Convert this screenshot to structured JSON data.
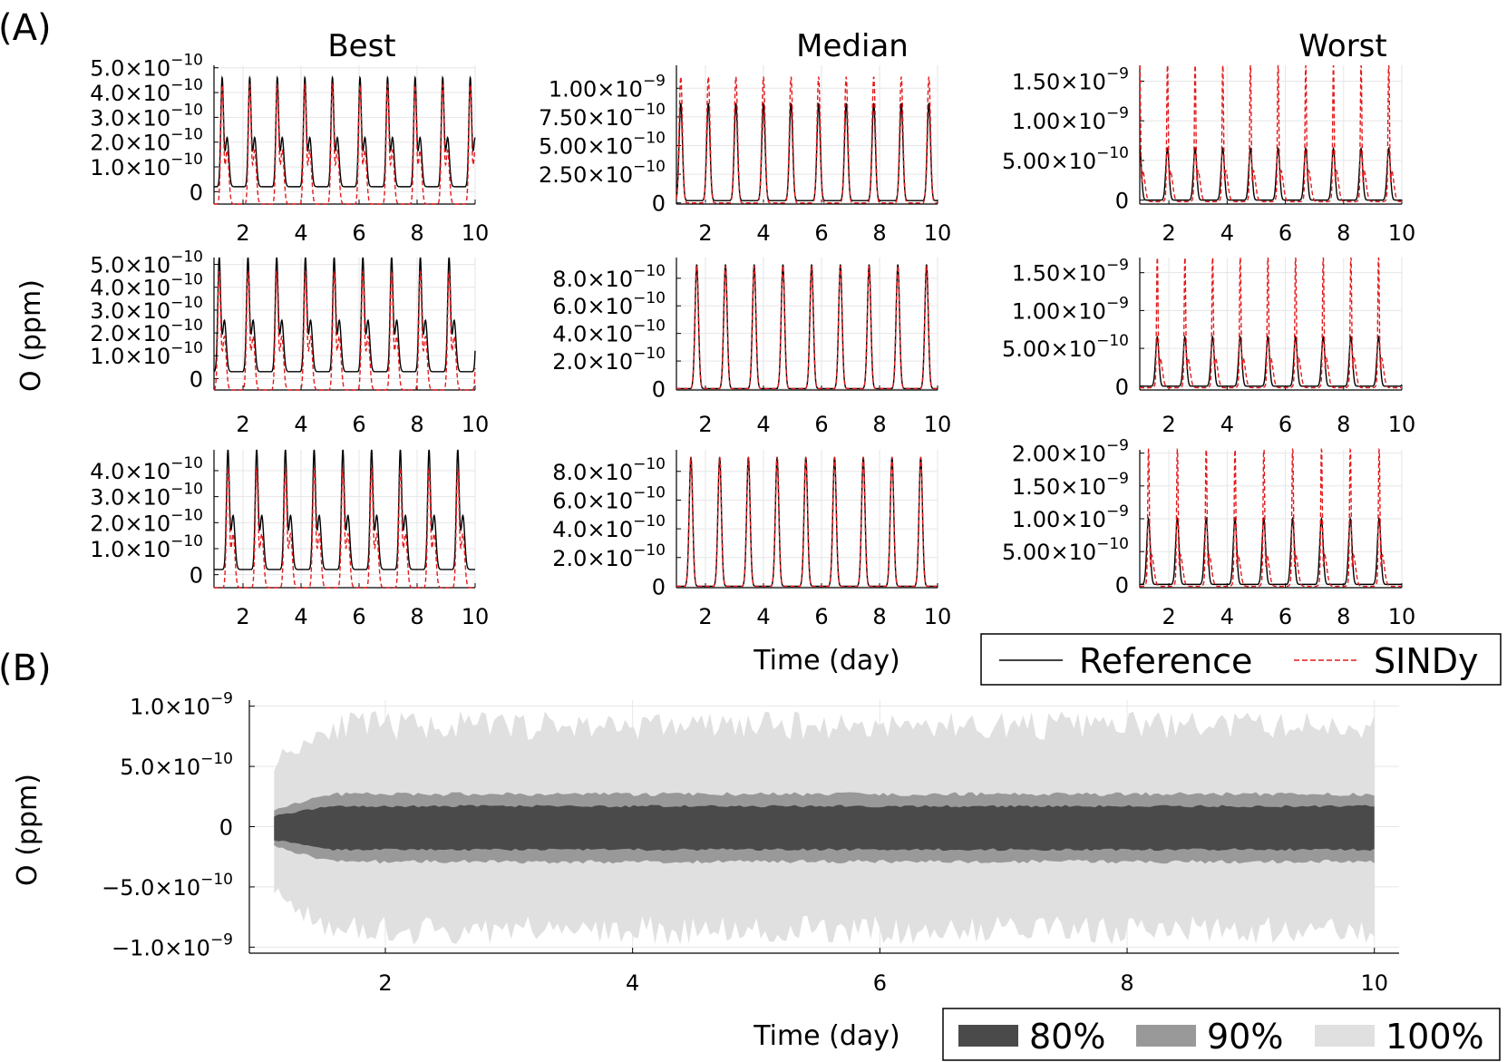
{
  "figure": {
    "panel_a_label": "(A)",
    "panel_b_label": "(B)",
    "column_titles": [
      "Best",
      "Median",
      "Worst"
    ],
    "shared_ylabel": "O (ppm)",
    "shared_xlabel": "Time (day)"
  },
  "legend_a": {
    "items": [
      {
        "label": "Reference",
        "style": "solid",
        "color": "#000000"
      },
      {
        "label": "SINDy",
        "style": "dashed",
        "color": "#e41a1c"
      }
    ]
  },
  "legend_b": {
    "items": [
      {
        "label": "80%",
        "color": "#4a4a4a"
      },
      {
        "label": "90%",
        "color": "#999999"
      },
      {
        "label": "100%",
        "color": "#e0e0e0"
      }
    ]
  },
  "colors": {
    "reference": "#000000",
    "sindy": "#e41a1c",
    "grid": "#e6e6e6"
  },
  "chart_data": [
    {
      "type": "line",
      "panel": "A",
      "column": "Best",
      "row": 1,
      "xlim": [
        1,
        10
      ],
      "ylim": [
        -5e-11,
        5.1e-10
      ],
      "xticks": [
        "2",
        "4",
        "6",
        "8",
        "10"
      ],
      "yticks": [
        {
          "v": 0,
          "m": "0",
          "e": ""
        },
        {
          "v": 1e-10,
          "m": "1.0×10",
          "e": "−10"
        },
        {
          "v": 2e-10,
          "m": "2.0×10",
          "e": "−10"
        },
        {
          "v": 3e-10,
          "m": "3.0×10",
          "e": "−10"
        },
        {
          "v": 4e-10,
          "m": "4.0×10",
          "e": "−10"
        },
        {
          "v": 5e-10,
          "m": "5.0×10",
          "e": "−10"
        }
      ],
      "period": 0.95,
      "phase": 1.3,
      "series": [
        {
          "name": "Reference",
          "amp": 4.4e-10,
          "base": 2e-11,
          "shape": "shoulder"
        },
        {
          "name": "SINDy",
          "amp": 4.8e-10,
          "base": -5e-11,
          "shape": "shoulder"
        }
      ]
    },
    {
      "type": "line",
      "panel": "A",
      "column": "Median",
      "row": 1,
      "xlim": [
        1,
        10
      ],
      "ylim": [
        -1e-11,
        1.2e-09
      ],
      "xticks": [
        "2",
        "4",
        "6",
        "8",
        "10"
      ],
      "yticks": [
        {
          "v": 0,
          "m": "0",
          "e": ""
        },
        {
          "v": 2.5e-10,
          "m": "2.50×10",
          "e": "−10"
        },
        {
          "v": 5e-10,
          "m": "5.00×10",
          "e": "−10"
        },
        {
          "v": 7.5e-10,
          "m": "7.50×10",
          "e": "−10"
        },
        {
          "v": 1e-09,
          "m": "1.00×10",
          "e": "−9"
        }
      ],
      "period": 0.95,
      "phase": 1.15,
      "series": [
        {
          "name": "Reference",
          "amp": 8.5e-10,
          "base": 2e-11,
          "shape": "peak"
        },
        {
          "name": "SINDy",
          "amp": 1.1e-09,
          "base": 0.0,
          "shape": "peak"
        }
      ]
    },
    {
      "type": "line",
      "panel": "A",
      "column": "Worst",
      "row": 1,
      "xlim": [
        1,
        10
      ],
      "ylim": [
        -5e-11,
        1.7e-09
      ],
      "xticks": [
        "2",
        "4",
        "6",
        "8",
        "10"
      ],
      "yticks": [
        {
          "v": 0,
          "m": "0",
          "e": ""
        },
        {
          "v": 5e-10,
          "m": "5.00×10",
          "e": "−10"
        },
        {
          "v": 1e-09,
          "m": "1.00×10",
          "e": "−9"
        },
        {
          "v": 1.5e-09,
          "m": "1.50×10",
          "e": "−9"
        }
      ],
      "period": 0.95,
      "phase": 1.0,
      "series": [
        {
          "name": "Reference",
          "amp": 6.5e-10,
          "base": 0.0,
          "shape": "peak"
        },
        {
          "name": "SINDy",
          "amp": 1.6e-09,
          "base": -2e-11,
          "shape": "spike"
        }
      ]
    },
    {
      "type": "line",
      "panel": "A",
      "column": "Best",
      "row": 2,
      "xlim": [
        1,
        10
      ],
      "ylim": [
        -5e-11,
        5.3e-10
      ],
      "xticks": [
        "2",
        "4",
        "6",
        "8",
        "10"
      ],
      "yticks": [
        {
          "v": 0,
          "m": "0",
          "e": ""
        },
        {
          "v": 1e-10,
          "m": "1.0×10",
          "e": "−10"
        },
        {
          "v": 2e-10,
          "m": "2.0×10",
          "e": "−10"
        },
        {
          "v": 3e-10,
          "m": "3.0×10",
          "e": "−10"
        },
        {
          "v": 4e-10,
          "m": "4.0×10",
          "e": "−10"
        },
        {
          "v": 5e-10,
          "m": "5.0×10",
          "e": "−10"
        }
      ],
      "period": 0.99,
      "phase": 1.2,
      "series": [
        {
          "name": "Reference",
          "amp": 5e-10,
          "base": 3e-11,
          "shape": "shoulder"
        },
        {
          "name": "SINDy",
          "amp": 5.2e-10,
          "base": -5e-11,
          "shape": "shoulder"
        }
      ]
    },
    {
      "type": "line",
      "panel": "A",
      "column": "Median",
      "row": 2,
      "xlim": [
        1,
        10
      ],
      "ylim": [
        -1e-11,
        9.5e-10
      ],
      "xticks": [
        "2",
        "4",
        "6",
        "8",
        "10"
      ],
      "yticks": [
        {
          "v": 0,
          "m": "0",
          "e": ""
        },
        {
          "v": 2e-10,
          "m": "2.0×10",
          "e": "−10"
        },
        {
          "v": 4e-10,
          "m": "4.0×10",
          "e": "−10"
        },
        {
          "v": 6e-10,
          "m": "6.0×10",
          "e": "−10"
        },
        {
          "v": 8e-10,
          "m": "8.0×10",
          "e": "−10"
        }
      ],
      "period": 0.99,
      "phase": 1.7,
      "series": [
        {
          "name": "Reference",
          "amp": 9e-10,
          "base": 0.0,
          "shape": "peak"
        },
        {
          "name": "SINDy",
          "amp": 8.9e-10,
          "base": 0.0,
          "shape": "peak"
        }
      ]
    },
    {
      "type": "line",
      "panel": "A",
      "column": "Worst",
      "row": 2,
      "xlim": [
        1,
        10
      ],
      "ylim": [
        -5e-11,
        1.7e-09
      ],
      "xticks": [
        "2",
        "4",
        "6",
        "8",
        "10"
      ],
      "yticks": [
        {
          "v": 0,
          "m": "0",
          "e": ""
        },
        {
          "v": 5e-10,
          "m": "5.00×10",
          "e": "−10"
        },
        {
          "v": 1e-09,
          "m": "1.00×10",
          "e": "−9"
        },
        {
          "v": 1.5e-09,
          "m": "1.50×10",
          "e": "−9"
        }
      ],
      "period": 0.95,
      "phase": 1.6,
      "series": [
        {
          "name": "Reference",
          "amp": 6.5e-10,
          "base": 0.0,
          "shape": "peak"
        },
        {
          "name": "SINDy",
          "amp": 1.6e-09,
          "base": -2e-11,
          "shape": "spike"
        }
      ]
    },
    {
      "type": "line",
      "panel": "A",
      "column": "Best",
      "row": 3,
      "xlim": [
        1,
        10
      ],
      "ylim": [
        -5e-11,
        4.8e-10
      ],
      "xticks": [
        "2",
        "4",
        "6",
        "8",
        "10"
      ],
      "yticks": [
        {
          "v": 0,
          "m": "0",
          "e": ""
        },
        {
          "v": 1e-10,
          "m": "1.0×10",
          "e": "−10"
        },
        {
          "v": 2e-10,
          "m": "2.0×10",
          "e": "−10"
        },
        {
          "v": 3e-10,
          "m": "3.0×10",
          "e": "−10"
        },
        {
          "v": 4e-10,
          "m": "4.0×10",
          "e": "−10"
        }
      ],
      "period": 0.99,
      "phase": 1.5,
      "series": [
        {
          "name": "Reference",
          "amp": 4.6e-10,
          "base": 2e-11,
          "shape": "shoulder"
        },
        {
          "name": "SINDy",
          "amp": 4.6e-10,
          "base": -5e-11,
          "shape": "shoulder"
        }
      ]
    },
    {
      "type": "line",
      "panel": "A",
      "column": "Median",
      "row": 3,
      "xlim": [
        1,
        10
      ],
      "ylim": [
        -1e-11,
        9.5e-10
      ],
      "xticks": [
        "2",
        "4",
        "6",
        "8",
        "10"
      ],
      "yticks": [
        {
          "v": 0,
          "m": "0",
          "e": ""
        },
        {
          "v": 2e-10,
          "m": "2.0×10",
          "e": "−10"
        },
        {
          "v": 4e-10,
          "m": "4.0×10",
          "e": "−10"
        },
        {
          "v": 6e-10,
          "m": "6.0×10",
          "e": "−10"
        },
        {
          "v": 8e-10,
          "m": "8.0×10",
          "e": "−10"
        }
      ],
      "period": 0.99,
      "phase": 1.5,
      "series": [
        {
          "name": "Reference",
          "amp": 9e-10,
          "base": 0.0,
          "shape": "peak"
        },
        {
          "name": "SINDy",
          "amp": 9e-10,
          "base": 0.0,
          "shape": "peak"
        }
      ]
    },
    {
      "type": "line",
      "panel": "A",
      "column": "Worst",
      "row": 3,
      "xlim": [
        1,
        10
      ],
      "ylim": [
        -5e-11,
        2.05e-09
      ],
      "xticks": [
        "2",
        "4",
        "6",
        "8",
        "10"
      ],
      "yticks": [
        {
          "v": 0,
          "m": "0",
          "e": ""
        },
        {
          "v": 5e-10,
          "m": "5.00×10",
          "e": "−10"
        },
        {
          "v": 1e-09,
          "m": "1.00×10",
          "e": "−9"
        },
        {
          "v": 1.5e-09,
          "m": "1.50×10",
          "e": "−9"
        },
        {
          "v": 2e-09,
          "m": "2.00×10",
          "e": "−9"
        }
      ],
      "period": 0.99,
      "phase": 1.3,
      "series": [
        {
          "name": "Reference",
          "amp": 1e-09,
          "base": 0.0,
          "shape": "peak"
        },
        {
          "name": "SINDy",
          "amp": 1.95e-09,
          "base": -3e-11,
          "shape": "spike"
        }
      ]
    },
    {
      "type": "area",
      "panel": "B",
      "title": "",
      "xlabel": "Time (day)",
      "ylabel": "O (ppm)",
      "xlim": [
        0.9,
        10.2
      ],
      "ylim": [
        -1.05e-09,
        1.05e-09
      ],
      "xticks": [
        2,
        4,
        6,
        8,
        10
      ],
      "yticks": [
        {
          "v": -1e-09,
          "m": "−1.0×10",
          "e": "−9"
        },
        {
          "v": -5e-10,
          "m": "−5.0×10",
          "e": "−10"
        },
        {
          "v": 0,
          "m": "0",
          "e": ""
        },
        {
          "v": 5e-10,
          "m": "5.0×10",
          "e": "−10"
        },
        {
          "v": 1e-09,
          "m": "1.0×10",
          "e": "−9"
        }
      ],
      "x_start": 1.1,
      "x_end": 10.0,
      "bands": [
        {
          "name": "100%",
          "half_width": 8.5e-10
        },
        {
          "name": "90%",
          "half_width": 2.8e-10
        },
        {
          "name": "80%",
          "half_width": 1.8e-10
        }
      ],
      "center_offset": -1e-11
    }
  ]
}
